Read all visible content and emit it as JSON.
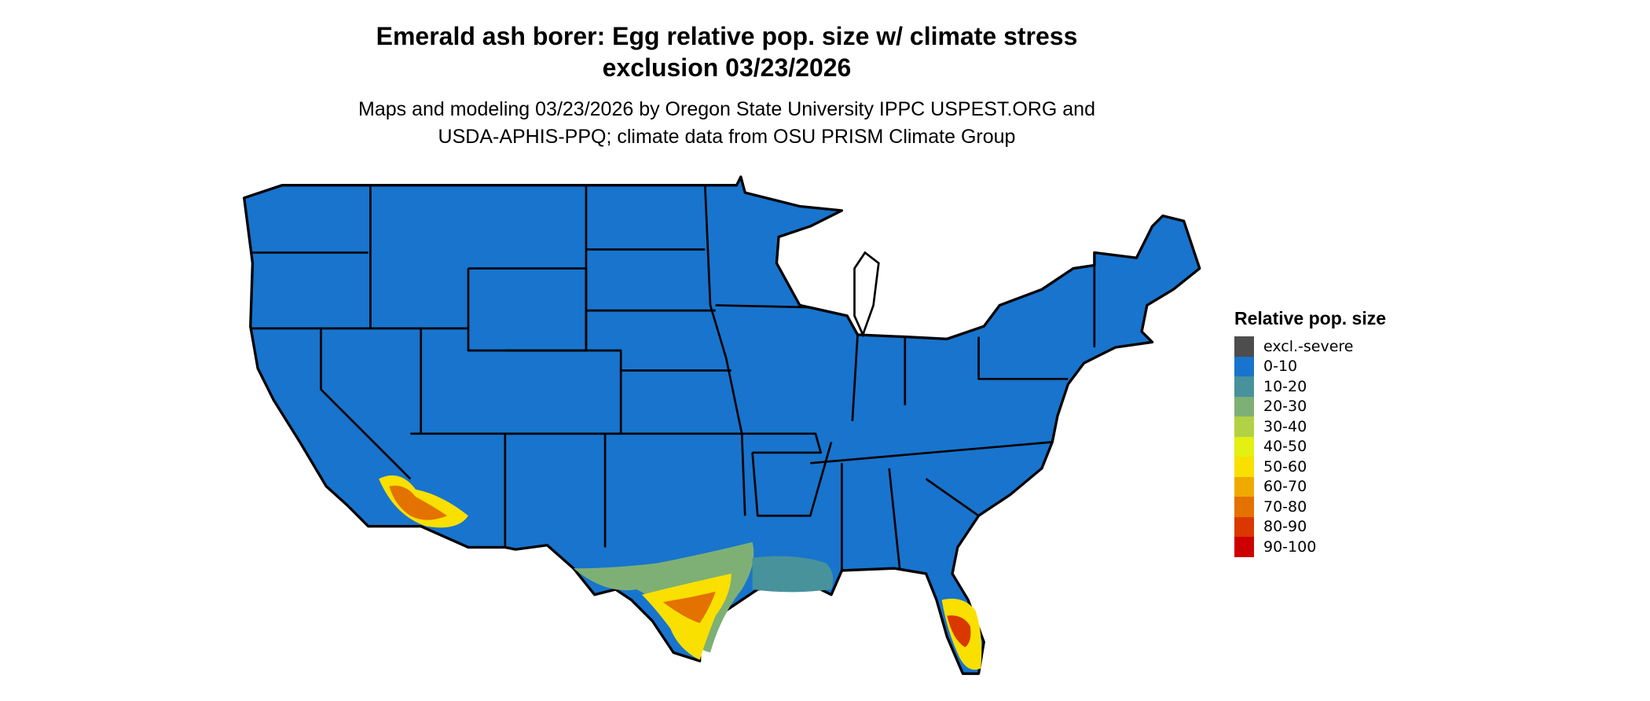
{
  "title": {
    "line1": "Emerald ash borer: Egg relative pop. size w/ climate stress",
    "line2": "exclusion 03/23/2026"
  },
  "subtitle": {
    "line1": "Maps and modeling 03/23/2026 by Oregon State University IPPC USPEST.ORG and",
    "line2": "USDA-APHIS-PPQ; climate data from OSU PRISM Climate Group"
  },
  "map": {
    "region": "Contiguous United States",
    "base_color": "#1874CD",
    "border_color": "#000000"
  },
  "legend": {
    "title": "Relative pop. size",
    "items": [
      {
        "label": "excl.-severe",
        "color": "#4D4D4D"
      },
      {
        "label": "0-10",
        "color": "#1874CD"
      },
      {
        "label": "10-20",
        "color": "#48929B"
      },
      {
        "label": "20-30",
        "color": "#7EB075"
      },
      {
        "label": "30-40",
        "color": "#B2D145"
      },
      {
        "label": "40-50",
        "color": "#E3F011"
      },
      {
        "label": "50-60",
        "color": "#F9E000"
      },
      {
        "label": "60-70",
        "color": "#EEAA00"
      },
      {
        "label": "70-80",
        "color": "#E37200"
      },
      {
        "label": "80-90",
        "color": "#DA3800"
      },
      {
        "label": "90-100",
        "color": "#CC0000"
      }
    ]
  }
}
